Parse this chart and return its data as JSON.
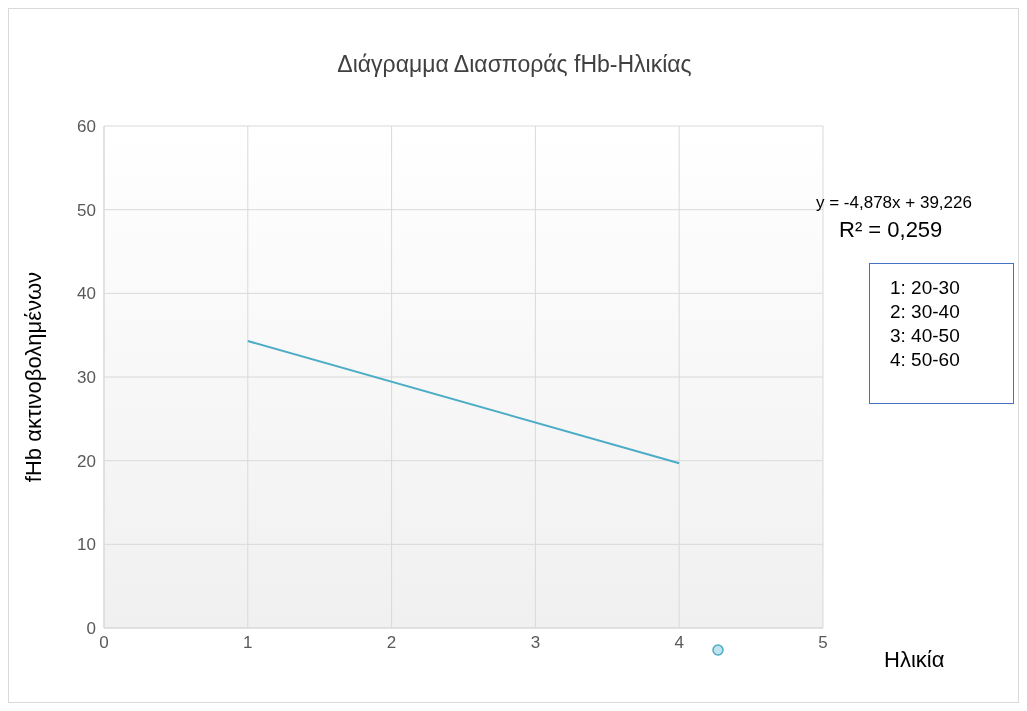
{
  "chart_data": {
    "type": "scatter",
    "title": "Διάγραμμα Διασποράς fHb-Ηλικίας",
    "xlabel": "Ηλικία",
    "ylabel": "fHb ακτινοβολημένων",
    "series": [
      {
        "type": "line",
        "color": "#4bacc6",
        "x": [
          1,
          4
        ],
        "values": [
          34.3,
          19.7
        ]
      }
    ],
    "xlim": [
      0,
      5
    ],
    "xticks": [
      0,
      1,
      2,
      3,
      4,
      5
    ],
    "ylim": [
      0,
      60
    ],
    "yticks": [
      0,
      10,
      20,
      30,
      40,
      50,
      60
    ],
    "grid": true,
    "annotations": [
      "y = -4,878x + 39,226",
      "R² = 0,259",
      "1: 20-30",
      "2: 30-40",
      "3: 40-50",
      "4: 50-60"
    ]
  }
}
